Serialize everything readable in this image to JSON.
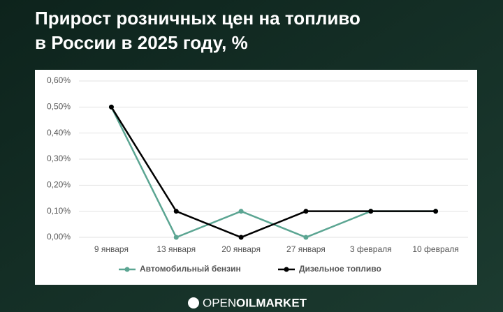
{
  "chart_data": {
    "type": "line",
    "title": [
      "Прирост розничных цен на топливо",
      "в России в 2025 году, %"
    ],
    "categories": [
      "9 января",
      "13 января",
      "20 января",
      "27 января",
      "3 февраля",
      "10 февраля"
    ],
    "series": [
      {
        "name": "Автомобильный бензин",
        "color": "#5ba592",
        "values": [
          0.5,
          0,
          0.1,
          0,
          0.1,
          0.1
        ]
      },
      {
        "name": "Дизельное топливо",
        "color": "#000000",
        "values": [
          0.5,
          0.1,
          0,
          0.1,
          0.1,
          0.1
        ]
      }
    ],
    "ylim": [
      0,
      0.6
    ],
    "yticks": [
      {
        "value": 0,
        "label": "0,00%"
      },
      {
        "value": 0.1,
        "label": "0,10%"
      },
      {
        "value": 0.2,
        "label": "0,20%"
      },
      {
        "value": 0.3,
        "label": "0,30%"
      },
      {
        "value": 0.4,
        "label": "0,40%"
      },
      {
        "value": 0.5,
        "label": "0,50%"
      },
      {
        "value": 0.6,
        "label": "0,60%"
      }
    ],
    "grid": true,
    "legend": "bottom",
    "brand": [
      "OPEN",
      "OILMARKET"
    ]
  }
}
